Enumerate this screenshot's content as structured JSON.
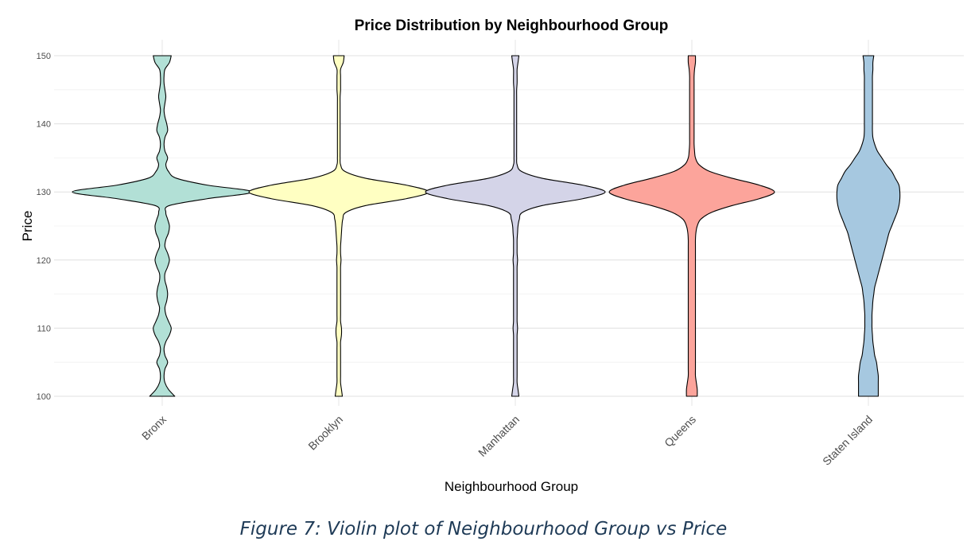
{
  "caption": "Figure 7: Violin plot of Neighbourhood Group vs Price",
  "chart_data": {
    "type": "violin",
    "title": "Price Distribution by Neighbourhood Group",
    "xlabel": "Neighbourhood Group",
    "ylabel": "Price",
    "ylim": [
      100,
      150
    ],
    "yticks": [
      100,
      110,
      120,
      130,
      140,
      150
    ],
    "grid": true,
    "outline_color": "#000000",
    "categories": [
      "Bronx",
      "Brooklyn",
      "Manhattan",
      "Queens",
      "Staten Island"
    ],
    "series": [
      {
        "category": "Bronx",
        "color": "#b2e0d6",
        "density": {
          "price": [
            100,
            101,
            102,
            103,
            104,
            105,
            106,
            107,
            108,
            109,
            110,
            111,
            112,
            113,
            114,
            115,
            116,
            117,
            118,
            119,
            120,
            121,
            122,
            123,
            124,
            125,
            126,
            127,
            128,
            129,
            130,
            131,
            132,
            133,
            134,
            135,
            136,
            137,
            138,
            139,
            140,
            141,
            142,
            143,
            144,
            145,
            146,
            147,
            148,
            149,
            150
          ],
          "width": [
            0.14,
            0.07,
            0.03,
            0.02,
            0.03,
            0.06,
            0.03,
            0.02,
            0.04,
            0.08,
            0.1,
            0.07,
            0.04,
            0.03,
            0.05,
            0.06,
            0.05,
            0.03,
            0.03,
            0.06,
            0.08,
            0.06,
            0.03,
            0.04,
            0.07,
            0.08,
            0.06,
            0.04,
            0.08,
            0.5,
            1.0,
            0.5,
            0.16,
            0.07,
            0.04,
            0.06,
            0.03,
            0.02,
            0.03,
            0.06,
            0.05,
            0.03,
            0.02,
            0.03,
            0.04,
            0.03,
            0.02,
            0.02,
            0.03,
            0.08,
            0.1
          ]
        }
      },
      {
        "category": "Brooklyn",
        "color": "#ffffc2",
        "density": {
          "price": [
            100,
            101,
            102,
            103,
            104,
            105,
            106,
            107,
            108,
            109,
            110,
            111,
            112,
            113,
            114,
            115,
            116,
            117,
            118,
            119,
            120,
            121,
            122,
            123,
            124,
            125,
            126,
            127,
            128,
            129,
            130,
            131,
            132,
            133,
            134,
            135,
            136,
            137,
            138,
            139,
            140,
            141,
            142,
            143,
            144,
            145,
            146,
            147,
            148,
            149,
            150
          ],
          "width": [
            0.04,
            0.03,
            0.02,
            0.02,
            0.02,
            0.02,
            0.02,
            0.02,
            0.02,
            0.03,
            0.03,
            0.02,
            0.02,
            0.02,
            0.02,
            0.02,
            0.02,
            0.02,
            0.02,
            0.02,
            0.025,
            0.02,
            0.02,
            0.025,
            0.03,
            0.035,
            0.045,
            0.08,
            0.3,
            0.75,
            1.0,
            0.75,
            0.3,
            0.07,
            0.02,
            0.015,
            0.015,
            0.015,
            0.015,
            0.015,
            0.015,
            0.015,
            0.015,
            0.015,
            0.015,
            0.02,
            0.02,
            0.02,
            0.02,
            0.05,
            0.06
          ]
        }
      },
      {
        "category": "Manhattan",
        "color": "#d4d4e8",
        "density": {
          "price": [
            100,
            101,
            102,
            103,
            104,
            105,
            106,
            107,
            108,
            109,
            110,
            111,
            112,
            113,
            114,
            115,
            116,
            117,
            118,
            119,
            120,
            121,
            122,
            123,
            124,
            125,
            126,
            127,
            128,
            129,
            130,
            131,
            132,
            133,
            134,
            135,
            136,
            137,
            138,
            139,
            140,
            141,
            142,
            143,
            144,
            145,
            146,
            147,
            148,
            149,
            150
          ],
          "width": [
            0.04,
            0.03,
            0.02,
            0.02,
            0.02,
            0.02,
            0.02,
            0.02,
            0.02,
            0.02,
            0.025,
            0.02,
            0.02,
            0.02,
            0.02,
            0.02,
            0.02,
            0.02,
            0.02,
            0.02,
            0.025,
            0.02,
            0.02,
            0.02,
            0.025,
            0.03,
            0.045,
            0.08,
            0.3,
            0.75,
            1.0,
            0.75,
            0.3,
            0.07,
            0.02,
            0.015,
            0.015,
            0.015,
            0.015,
            0.015,
            0.015,
            0.015,
            0.015,
            0.015,
            0.015,
            0.015,
            0.02,
            0.02,
            0.02,
            0.03,
            0.04
          ]
        }
      },
      {
        "category": "Queens",
        "color": "#fca49b",
        "density": {
          "price": [
            100,
            101,
            102,
            103,
            104,
            105,
            106,
            107,
            108,
            109,
            110,
            111,
            112,
            113,
            114,
            115,
            116,
            117,
            118,
            119,
            120,
            121,
            122,
            123,
            124,
            125,
            126,
            127,
            128,
            129,
            130,
            131,
            132,
            133,
            134,
            135,
            136,
            137,
            138,
            139,
            140,
            141,
            142,
            143,
            144,
            145,
            146,
            147,
            148,
            149,
            150
          ],
          "width": [
            0.06,
            0.06,
            0.05,
            0.04,
            0.04,
            0.04,
            0.04,
            0.04,
            0.04,
            0.04,
            0.04,
            0.04,
            0.04,
            0.04,
            0.04,
            0.04,
            0.04,
            0.04,
            0.04,
            0.04,
            0.04,
            0.04,
            0.04,
            0.04,
            0.045,
            0.06,
            0.1,
            0.22,
            0.45,
            0.75,
            0.92,
            0.75,
            0.45,
            0.2,
            0.08,
            0.04,
            0.03,
            0.025,
            0.025,
            0.025,
            0.025,
            0.025,
            0.025,
            0.025,
            0.025,
            0.025,
            0.025,
            0.025,
            0.03,
            0.04,
            0.04
          ]
        }
      },
      {
        "category": "Staten Island",
        "color": "#a6c8e0",
        "density": {
          "price": [
            100,
            101,
            102,
            103,
            104,
            105,
            106,
            107,
            108,
            109,
            110,
            111,
            112,
            113,
            114,
            115,
            116,
            117,
            118,
            119,
            120,
            121,
            122,
            123,
            124,
            125,
            126,
            127,
            128,
            129,
            130,
            131,
            132,
            133,
            134,
            135,
            136,
            137,
            138,
            139,
            140,
            141,
            142,
            143,
            144,
            145,
            146,
            147,
            148,
            149,
            150
          ],
          "width": [
            0.11,
            0.11,
            0.11,
            0.11,
            0.1,
            0.09,
            0.07,
            0.06,
            0.05,
            0.045,
            0.04,
            0.04,
            0.04,
            0.045,
            0.05,
            0.06,
            0.07,
            0.09,
            0.11,
            0.13,
            0.15,
            0.17,
            0.19,
            0.21,
            0.23,
            0.26,
            0.29,
            0.32,
            0.34,
            0.35,
            0.35,
            0.34,
            0.3,
            0.26,
            0.2,
            0.15,
            0.1,
            0.07,
            0.05,
            0.045,
            0.045,
            0.045,
            0.045,
            0.045,
            0.045,
            0.045,
            0.045,
            0.045,
            0.05,
            0.05,
            0.06
          ]
        }
      }
    ]
  }
}
